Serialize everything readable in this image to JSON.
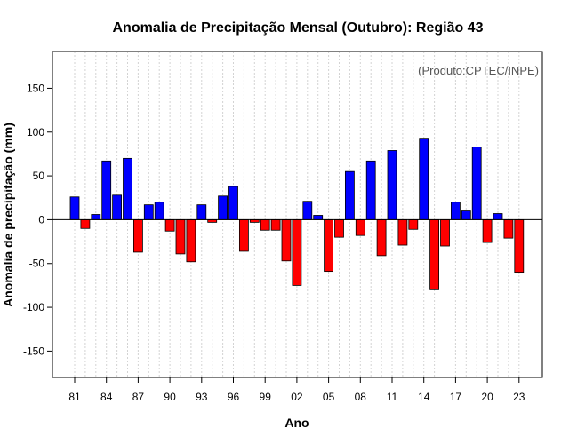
{
  "chart_data": {
    "type": "bar",
    "title": "Anomalia de Precipitação Mensal (Outubro): Região 43",
    "xlabel": "Ano",
    "ylabel": "Anomalia de precipitação (mm)",
    "credit": "(Produto:CPTEC/INPE)",
    "ylim": [
      -180,
      192
    ],
    "y_ticks": [
      -150,
      -100,
      -50,
      0,
      50,
      100,
      150
    ],
    "x_tick_labels": [
      "81",
      "84",
      "87",
      "90",
      "93",
      "96",
      "99",
      "02",
      "05",
      "08",
      "11",
      "14",
      "17",
      "20",
      "23"
    ],
    "positive_color": "#0000ff",
    "negative_color": "#ff0000",
    "categories": [
      "1981",
      "1982",
      "1983",
      "1984",
      "1985",
      "1986",
      "1987",
      "1988",
      "1989",
      "1990",
      "1991",
      "1992",
      "1993",
      "1994",
      "1995",
      "1996",
      "1997",
      "1998",
      "1999",
      "2000",
      "2001",
      "2002",
      "2003",
      "2004",
      "2005",
      "2006",
      "2007",
      "2008",
      "2009",
      "2010",
      "2011",
      "2012",
      "2013",
      "2014",
      "2015",
      "2016",
      "2017",
      "2018",
      "2019",
      "2020",
      "2021",
      "2022",
      "2023"
    ],
    "values": [
      26,
      -10,
      6,
      67,
      28,
      70,
      -37,
      17,
      20,
      -13,
      -39,
      -48,
      17,
      -3,
      27,
      38,
      -36,
      -3,
      -12,
      -12,
      -47,
      -75,
      21,
      5,
      -59,
      -20,
      55,
      -18,
      67,
      -41,
      79,
      -29,
      -11,
      93,
      -80,
      -30,
      20,
      10,
      83,
      -26,
      7,
      -21,
      -60
    ]
  }
}
